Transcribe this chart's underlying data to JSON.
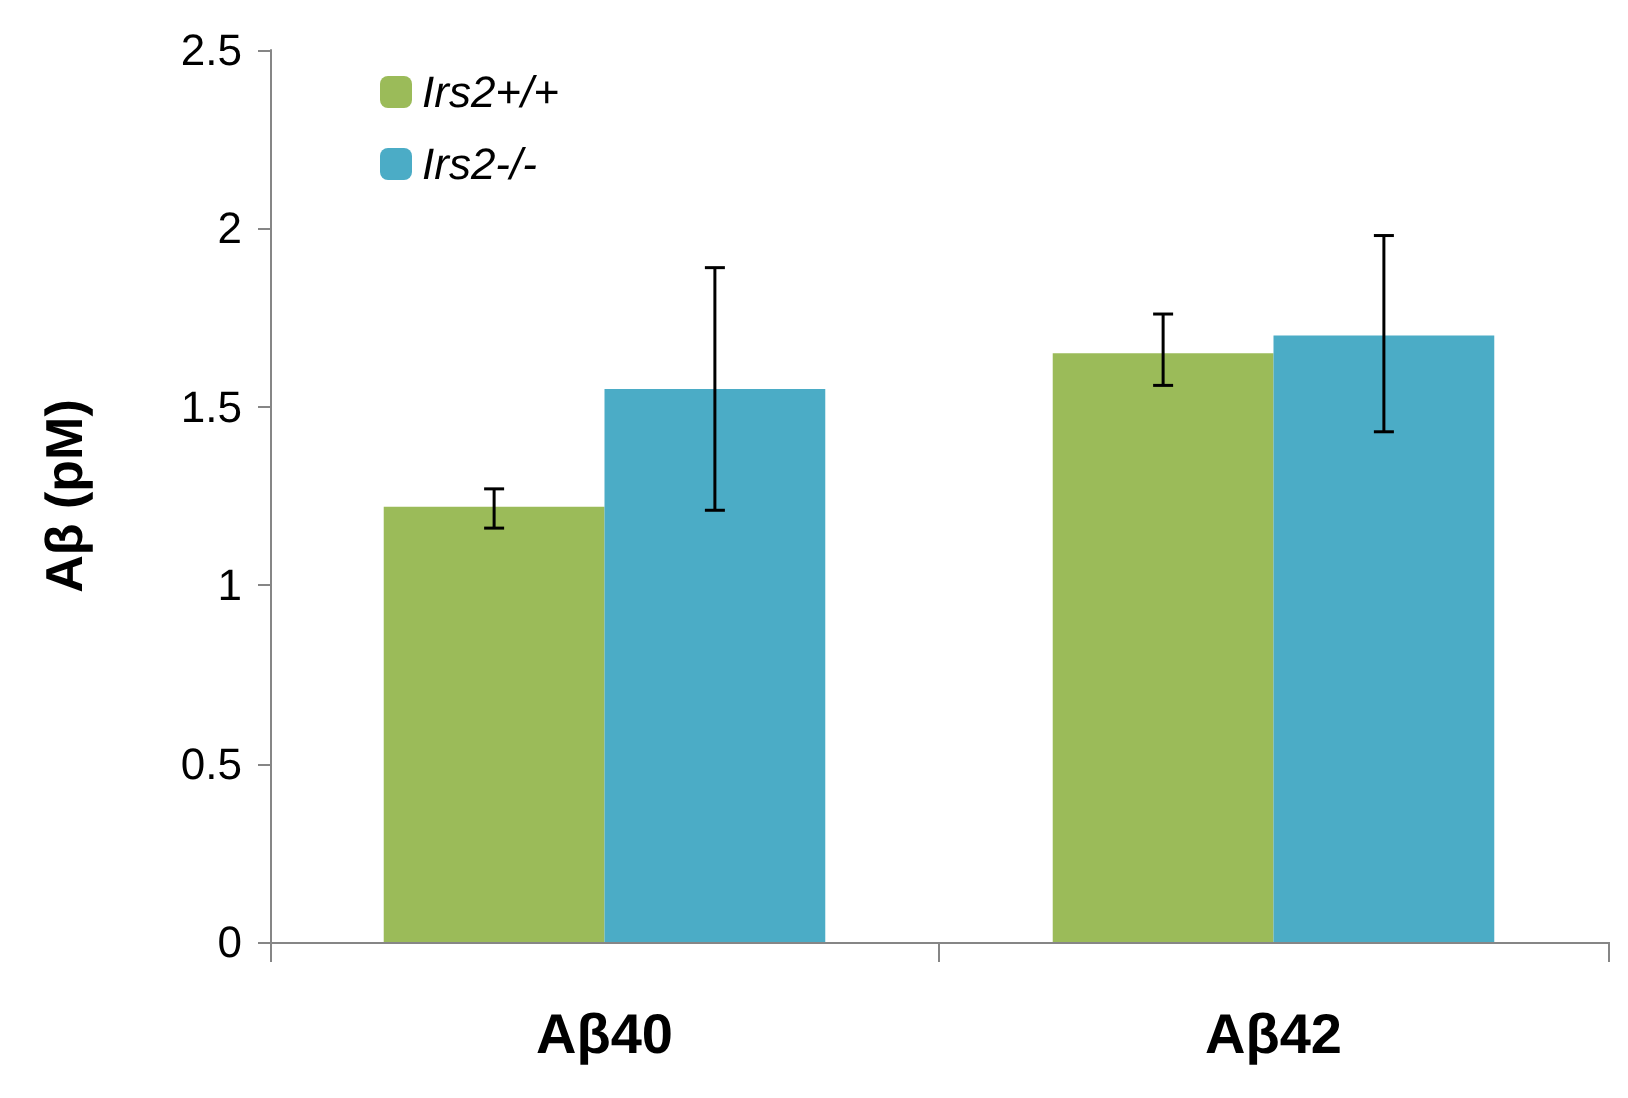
{
  "chart_data": {
    "type": "bar",
    "ylabel": "Aβ (pM)",
    "categories": [
      "Aβ40",
      "Aβ42"
    ],
    "series": [
      {
        "name": "Irs2+/+",
        "color": "#9bbb59",
        "values": [
          1.22,
          1.65
        ],
        "errors": [
          [
            1.16,
            1.27
          ],
          [
            1.56,
            1.76
          ]
        ]
      },
      {
        "name": "Irs2-/-",
        "color": "#4bacc6",
        "values": [
          1.55,
          1.7
        ],
        "errors": [
          [
            1.21,
            1.89
          ],
          [
            1.43,
            1.98
          ]
        ]
      }
    ],
    "ylim": [
      0,
      2.5
    ],
    "yticks": [
      0,
      0.5,
      1,
      1.5,
      2,
      2.5
    ],
    "grid": false,
    "legend": "top left"
  }
}
